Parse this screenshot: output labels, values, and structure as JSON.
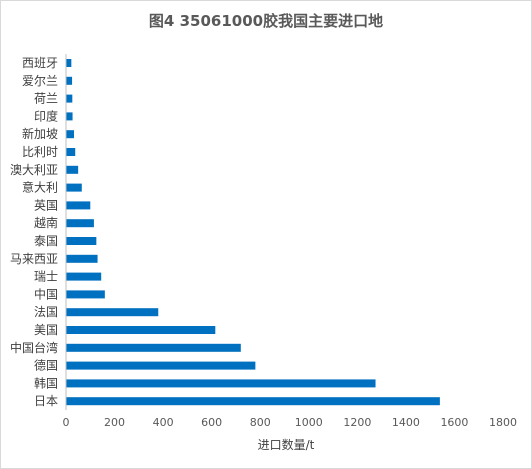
{
  "chart_data": {
    "type": "bar",
    "orientation": "horizontal",
    "title": "图4  35061000胶我国主要进口地",
    "xlabel": "进口数量/t",
    "ylabel": "",
    "xlim": [
      0,
      1800
    ],
    "xticks": [
      0,
      200,
      400,
      600,
      800,
      1000,
      1200,
      1400,
      1600,
      1800
    ],
    "grid": false,
    "bar_color": "#0070C0",
    "categories": [
      "西班牙",
      "爱尔兰",
      "荷兰",
      "印度",
      "新加坡",
      "比利时",
      "澳大利亚",
      "意大利",
      "英国",
      "越南",
      "泰国",
      "马来西亚",
      "瑞士",
      "中国",
      "法国",
      "美国",
      "中国台湾",
      "德国",
      "韩国",
      "日本"
    ],
    "values": [
      22,
      25,
      26,
      27,
      33,
      38,
      50,
      65,
      100,
      115,
      125,
      130,
      145,
      160,
      380,
      615,
      720,
      780,
      1275,
      1540
    ]
  }
}
